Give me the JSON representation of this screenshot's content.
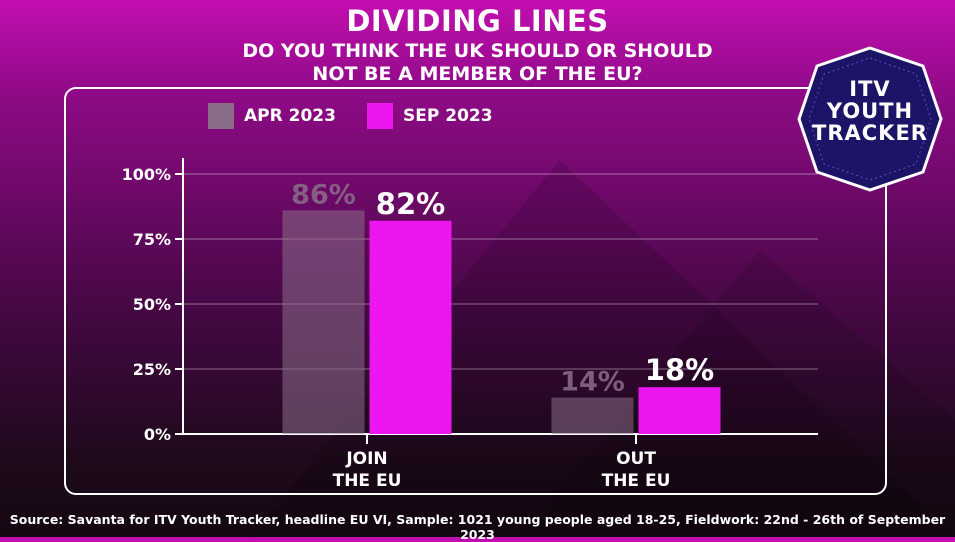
{
  "header": {
    "title": "DIVIDING LINES",
    "subtitle_line1": "DO YOU THINK THE UK SHOULD OR SHOULD",
    "subtitle_line2": "NOT BE A MEMBER OF THE EU?"
  },
  "badge": {
    "line1": "ITV",
    "line2": "YOUTH",
    "line3": "TRACKER"
  },
  "colors": {
    "apr": "#8a6d88",
    "sep": "#ee16f0",
    "accent": "#c20fb0"
  },
  "chart_data": {
    "type": "bar",
    "categories": [
      "JOIN\nTHE EU",
      "OUT\nTHE EU"
    ],
    "category_lines": [
      [
        "JOIN",
        "THE EU"
      ],
      [
        "OUT",
        "THE EU"
      ]
    ],
    "series": [
      {
        "name": "APR 2023",
        "values": [
          86,
          14
        ],
        "labels": [
          "86%",
          "14%"
        ]
      },
      {
        "name": "SEP 2023",
        "values": [
          82,
          18
        ],
        "labels": [
          "82%",
          "18%"
        ]
      }
    ],
    "yticks": [
      "0%",
      "25%",
      "50%",
      "75%",
      "100%"
    ],
    "ytick_values": [
      0,
      25,
      50,
      75,
      100
    ],
    "ylim": [
      0,
      100
    ],
    "grid": true,
    "legend": "top-left"
  },
  "source": "Source: Savanta for ITV Youth Tracker, headline EU VI, Sample: 1021 young people aged 18-25, Fieldwork: 22nd - 26th of September 2023"
}
